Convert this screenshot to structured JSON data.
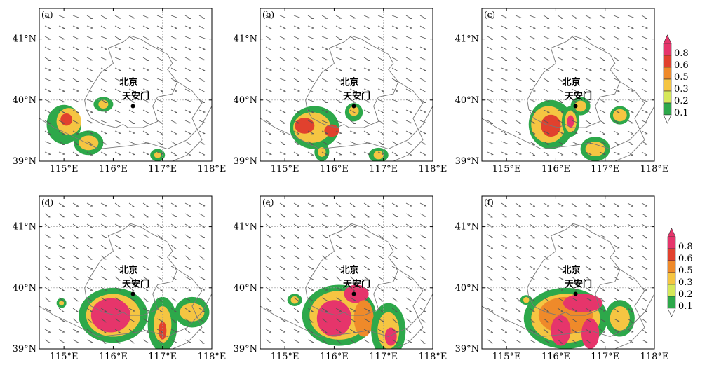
{
  "panels": [
    {
      "id": "a",
      "label": "(a)"
    },
    {
      "id": "b",
      "label": "(b)"
    },
    {
      "id": "c",
      "label": "(c)"
    },
    {
      "id": "d",
      "label": "(d)"
    },
    {
      "id": "e",
      "label": "(e)"
    },
    {
      "id": "f",
      "label": "(f)"
    }
  ],
  "axes": {
    "lat_ticks": [
      "39°N",
      "40°N",
      "41°N"
    ],
    "lon_ticks": [
      "115°E",
      "116°E",
      "117°E",
      "118°E"
    ],
    "lat_range": [
      39,
      41.5
    ],
    "lon_range": [
      114.5,
      118
    ]
  },
  "places": {
    "city": "北京",
    "station": "天安门",
    "station_lon": 116.4,
    "station_lat": 39.9
  },
  "legends": [
    {
      "id": "top",
      "values": [
        "0.8",
        "0.6",
        "0.5",
        "0.3",
        "0.2",
        "0.1"
      ]
    },
    {
      "id": "bottom",
      "values": [
        "0.8",
        "0.6",
        "0.5",
        "0.3",
        "0.2",
        "0.1"
      ]
    }
  ],
  "colors": {
    "c1": "#2da84a",
    "c2": "#d6e85a",
    "c3": "#f5c542",
    "c4": "#ef8a2a",
    "c5": "#e1412e",
    "c6": "#e6356b"
  }
}
